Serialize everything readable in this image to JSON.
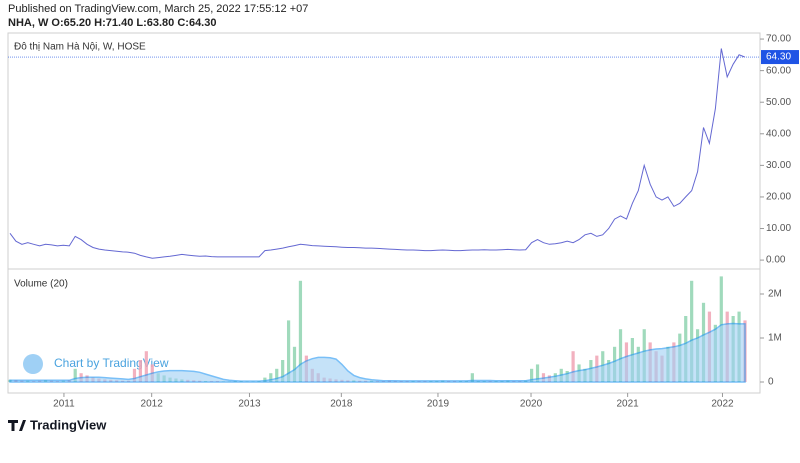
{
  "header": {
    "published": "Published on TradingView.com, March 25, 2022 17:55:12 +07",
    "ohlc": "NHA, W O:65.20 H:71.40 L:63.80 C:64.30"
  },
  "footer": {
    "watermark": "Chart by TradingView",
    "logo": "TradingView"
  },
  "chart_data": [
    {
      "type": "line",
      "title": "Đô thị Nam Hà Nội, W, HOSE",
      "color": "#6468d2",
      "xlim": [
        0,
        124
      ],
      "ylim": [
        -2.5,
        71.6
      ],
      "yticks": [
        {
          "value": 0,
          "label": "0.00"
        },
        {
          "value": 10,
          "label": "10.00"
        },
        {
          "value": 20,
          "label": "20.00"
        },
        {
          "value": 30,
          "label": "30.00"
        },
        {
          "value": 40,
          "label": "40.00"
        },
        {
          "value": 50,
          "label": "50.00"
        },
        {
          "value": 60,
          "label": "60.00"
        },
        {
          "value": 70,
          "label": "70.00"
        }
      ],
      "price_line": {
        "value": 64.3,
        "label": "64.30",
        "color": "#1e53e5"
      },
      "values": [
        8.5,
        6,
        5,
        5.5,
        5,
        4.5,
        5,
        4.8,
        4.5,
        4.7,
        4.5,
        7.5,
        6.5,
        5,
        4,
        3.5,
        3.2,
        3,
        2.8,
        2.6,
        2.5,
        2.2,
        1.5,
        1,
        0.6,
        0.8,
        1,
        1.2,
        1.5,
        1.8,
        1.6,
        1.4,
        1.2,
        1.3,
        1.1,
        1,
        1,
        1,
        1,
        1,
        1,
        1,
        1,
        3,
        3.2,
        3.5,
        3.8,
        4.2,
        4.6,
        5,
        4.8,
        4.6,
        4.5,
        4.4,
        4.3,
        4.2,
        4.1,
        4,
        4,
        3.9,
        3.8,
        3.8,
        3.7,
        3.6,
        3.5,
        3.4,
        3.3,
        3.2,
        3.2,
        3.1,
        3,
        3,
        3.1,
        3.2,
        3.1,
        3,
        3,
        3.1,
        3.2,
        3.2,
        3.3,
        3.2,
        3.2,
        3.3,
        3.4,
        3.3,
        3.2,
        3.3,
        5.5,
        6.5,
        5.5,
        5,
        5.2,
        5.5,
        6,
        5.5,
        6.5,
        8,
        8.5,
        7.5,
        8,
        10,
        13,
        14,
        13,
        18,
        22,
        30,
        24,
        20,
        19,
        20,
        17,
        18,
        20,
        22,
        28,
        42,
        37,
        48,
        67,
        58,
        62,
        65,
        64.3
      ]
    },
    {
      "type": "volume",
      "title": "Volume (20)",
      "xlim": [
        0,
        124
      ],
      "ylim": [
        -227000,
        2500000
      ],
      "yticks": [
        0,
        {
          "value": 1000000,
          "label": "1M"
        },
        {
          "value": 2000000,
          "label": "2M"
        }
      ],
      "xticks": [
        {
          "value": 9.1,
          "label": "2011"
        },
        {
          "value": 23.9,
          "label": "2012"
        },
        {
          "value": 40.4,
          "label": "2013"
        },
        {
          "value": 55.9,
          "label": "2018"
        },
        {
          "value": 72.2,
          "label": "2019"
        },
        {
          "value": 87.9,
          "label": "2020"
        },
        {
          "value": 104.2,
          "label": "2021"
        },
        {
          "value": 120.2,
          "label": "2022"
        }
      ],
      "up_color": "#8fd3b0",
      "down_color": "#f0a3b4",
      "series": [
        {
          "name": "Volume",
          "values": [
            50000,
            40000,
            30000,
            30000,
            20000,
            30000,
            40000,
            30000,
            20000,
            30000,
            40000,
            300000,
            200000,
            150000,
            100000,
            80000,
            60000,
            50000,
            40000,
            30000,
            30000,
            300000,
            500000,
            700000,
            400000,
            200000,
            150000,
            100000,
            80000,
            60000,
            50000,
            40000,
            30000,
            20000,
            20000,
            20000,
            10000,
            10000,
            20000,
            20000,
            10000,
            10000,
            20000,
            100000,
            200000,
            300000,
            500000,
            1400000,
            800000,
            2300000,
            600000,
            300000,
            200000,
            100000,
            80000,
            60000,
            50000,
            40000,
            40000,
            30000,
            30000,
            30000,
            20000,
            20000,
            30000,
            20000,
            20000,
            20000,
            20000,
            20000,
            20000,
            20000,
            20000,
            30000,
            20000,
            20000,
            20000,
            20000,
            200000,
            20000,
            20000,
            20000,
            20000,
            20000,
            30000,
            20000,
            20000,
            30000,
            300000,
            400000,
            200000,
            150000,
            200000,
            300000,
            250000,
            700000,
            400000,
            300000,
            500000,
            600000,
            700000,
            500000,
            800000,
            1200000,
            900000,
            1000000,
            800000,
            1200000,
            900000,
            700000,
            600000,
            800000,
            900000,
            1100000,
            1500000,
            2300000,
            1200000,
            1800000,
            1600000,
            1300000,
            2400000,
            1600000,
            1500000,
            1600000,
            1400000
          ]
        },
        {
          "name": "MA",
          "color": "#2196f3",
          "fill": "#9fd0f5",
          "values": [
            40000,
            40000,
            40000,
            40000,
            40000,
            40000,
            40000,
            40000,
            40000,
            40000,
            40000,
            80000,
            100000,
            110000,
            110000,
            110000,
            100000,
            90000,
            80000,
            70000,
            60000,
            80000,
            120000,
            160000,
            200000,
            230000,
            250000,
            260000,
            260000,
            260000,
            250000,
            240000,
            220000,
            180000,
            140000,
            100000,
            60000,
            40000,
            30000,
            20000,
            20000,
            20000,
            20000,
            30000,
            50000,
            80000,
            120000,
            200000,
            280000,
            400000,
            480000,
            530000,
            560000,
            560000,
            550000,
            520000,
            400000,
            250000,
            150000,
            100000,
            70000,
            50000,
            40000,
            30000,
            30000,
            30000,
            25000,
            25000,
            25000,
            25000,
            25000,
            25000,
            25000,
            25000,
            25000,
            25000,
            25000,
            25000,
            35000,
            35000,
            35000,
            35000,
            30000,
            30000,
            30000,
            30000,
            30000,
            30000,
            50000,
            70000,
            90000,
            110000,
            130000,
            160000,
            190000,
            230000,
            260000,
            280000,
            310000,
            340000,
            380000,
            420000,
            470000,
            530000,
            580000,
            620000,
            660000,
            700000,
            730000,
            750000,
            760000,
            780000,
            800000,
            830000,
            880000,
            950000,
            1000000,
            1070000,
            1130000,
            1200000,
            1300000,
            1320000,
            1330000,
            1320000,
            1320000
          ]
        }
      ]
    }
  ]
}
